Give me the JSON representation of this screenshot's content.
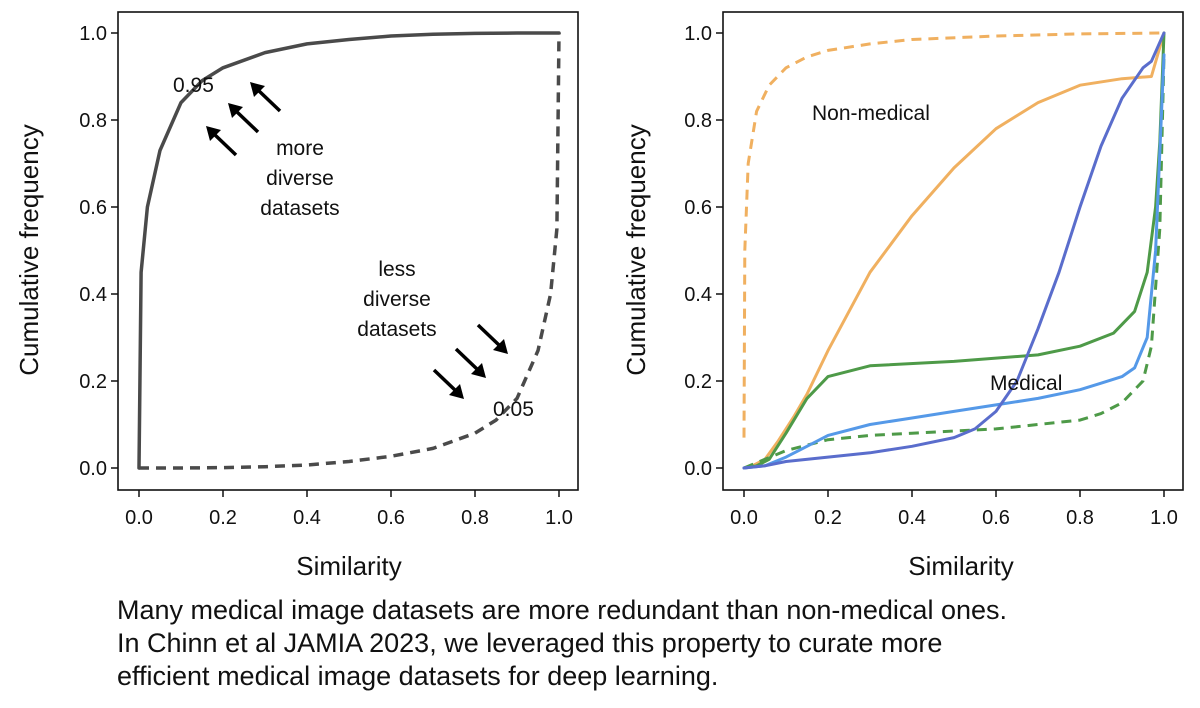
{
  "chart_data": [
    {
      "type": "line",
      "title": "",
      "xlabel": "Similarity",
      "ylabel": "Cumulative frequency",
      "xlim": [
        0,
        1
      ],
      "ylim": [
        0,
        1
      ],
      "xticks": [
        "0.0",
        "0.2",
        "0.4",
        "0.6",
        "0.8",
        "1.0"
      ],
      "yticks": [
        "0.0",
        "0.2",
        "0.4",
        "0.6",
        "0.8",
        "1.0"
      ],
      "grid": false,
      "series": [
        {
          "name": "more diverse datasets",
          "style": "solid",
          "color": "#4a4a4a",
          "x": [
            0,
            0.005,
            0.02,
            0.05,
            0.1,
            0.15,
            0.2,
            0.3,
            0.4,
            0.5,
            0.6,
            0.7,
            0.8,
            0.9,
            1.0
          ],
          "y": [
            0,
            0.45,
            0.6,
            0.73,
            0.84,
            0.89,
            0.92,
            0.955,
            0.975,
            0.985,
            0.993,
            0.997,
            0.999,
            1.0,
            1.0
          ]
        },
        {
          "name": "less diverse datasets",
          "style": "dashed",
          "color": "#4a4a4a",
          "x": [
            0,
            0.1,
            0.2,
            0.3,
            0.4,
            0.5,
            0.6,
            0.7,
            0.8,
            0.85,
            0.9,
            0.95,
            0.98,
            0.995,
            1.0
          ],
          "y": [
            0,
            0.0,
            0.001,
            0.003,
            0.007,
            0.015,
            0.027,
            0.045,
            0.08,
            0.11,
            0.16,
            0.27,
            0.4,
            0.55,
            1.0
          ]
        }
      ],
      "annotations": {
        "upper_value": "0.95",
        "upper_label": [
          "more",
          "diverse",
          "datasets"
        ],
        "lower_value": "0.05",
        "lower_label": [
          "less",
          "diverse",
          "datasets"
        ]
      }
    },
    {
      "type": "line",
      "title": "",
      "xlabel": "Similarity",
      "ylabel": "Cumulative frequency",
      "xlim": [
        0,
        1
      ],
      "ylim": [
        0,
        1
      ],
      "xticks": [
        "0.0",
        "0.2",
        "0.4",
        "0.6",
        "0.8",
        "1.0"
      ],
      "yticks": [
        "0.0",
        "0.2",
        "0.4",
        "0.6",
        "0.8",
        "1.0"
      ],
      "grid": false,
      "labels": {
        "non_medical": "Non-medical",
        "medical": "Medical"
      },
      "series": [
        {
          "name": "non-medical dashed",
          "group": "Non-medical",
          "style": "dashed",
          "color": "#f0b060",
          "x": [
            0,
            0.002,
            0.01,
            0.03,
            0.06,
            0.1,
            0.15,
            0.2,
            0.3,
            0.4,
            0.6,
            0.8,
            1.0
          ],
          "y": [
            0.07,
            0.5,
            0.7,
            0.82,
            0.88,
            0.92,
            0.945,
            0.96,
            0.975,
            0.985,
            0.993,
            0.998,
            1.0
          ]
        },
        {
          "name": "non-medical solid",
          "group": "Non-medical",
          "style": "solid",
          "color": "#f0b060",
          "x": [
            0,
            0.02,
            0.05,
            0.08,
            0.12,
            0.15,
            0.2,
            0.3,
            0.4,
            0.5,
            0.6,
            0.7,
            0.8,
            0.9,
            0.97,
            1.0
          ],
          "y": [
            0,
            0.005,
            0.02,
            0.06,
            0.12,
            0.17,
            0.27,
            0.45,
            0.58,
            0.69,
            0.78,
            0.84,
            0.88,
            0.895,
            0.9,
            1.0
          ]
        },
        {
          "name": "medical green solid",
          "group": "Medical",
          "style": "solid",
          "color": "#4e9a48",
          "x": [
            0,
            0.03,
            0.06,
            0.1,
            0.15,
            0.2,
            0.3,
            0.5,
            0.7,
            0.8,
            0.88,
            0.93,
            0.96,
            0.98,
            0.99,
            1.0
          ],
          "y": [
            0,
            0.005,
            0.02,
            0.08,
            0.16,
            0.21,
            0.235,
            0.245,
            0.26,
            0.28,
            0.31,
            0.36,
            0.45,
            0.6,
            0.75,
            1.0
          ]
        },
        {
          "name": "medical green dashed",
          "group": "Medical",
          "style": "dashed",
          "color": "#4e9a48",
          "x": [
            0,
            0.05,
            0.1,
            0.2,
            0.3,
            0.4,
            0.5,
            0.6,
            0.7,
            0.8,
            0.85,
            0.9,
            0.95,
            0.97,
            0.99,
            1.0
          ],
          "y": [
            0,
            0.02,
            0.04,
            0.065,
            0.075,
            0.08,
            0.085,
            0.09,
            0.1,
            0.11,
            0.125,
            0.15,
            0.2,
            0.28,
            0.55,
            0.95
          ]
        },
        {
          "name": "medical light blue",
          "group": "Medical",
          "style": "solid",
          "color": "#5599e8",
          "x": [
            0,
            0.05,
            0.1,
            0.15,
            0.2,
            0.3,
            0.4,
            0.5,
            0.6,
            0.7,
            0.8,
            0.85,
            0.9,
            0.93,
            0.96,
            0.98,
            1.0
          ],
          "y": [
            0,
            0.005,
            0.025,
            0.05,
            0.075,
            0.1,
            0.115,
            0.13,
            0.145,
            0.16,
            0.18,
            0.195,
            0.21,
            0.23,
            0.3,
            0.5,
            0.95
          ]
        },
        {
          "name": "medical dark blue",
          "group": "Medical",
          "style": "solid",
          "color": "#5a6dcc",
          "x": [
            0,
            0.05,
            0.1,
            0.2,
            0.3,
            0.4,
            0.5,
            0.55,
            0.6,
            0.65,
            0.7,
            0.75,
            0.8,
            0.85,
            0.9,
            0.95,
            0.97,
            1.0
          ],
          "y": [
            0,
            0.005,
            0.015,
            0.025,
            0.035,
            0.05,
            0.07,
            0.09,
            0.13,
            0.2,
            0.32,
            0.45,
            0.6,
            0.74,
            0.85,
            0.92,
            0.935,
            1.0
          ]
        }
      ]
    }
  ],
  "caption": {
    "lines": [
      "Many medical image datasets are more redundant than non-medical ones.",
      "In Chinn et al JAMIA 2023, we leveraged this property to curate more",
      "efficient medical image datasets for deep learning."
    ]
  }
}
